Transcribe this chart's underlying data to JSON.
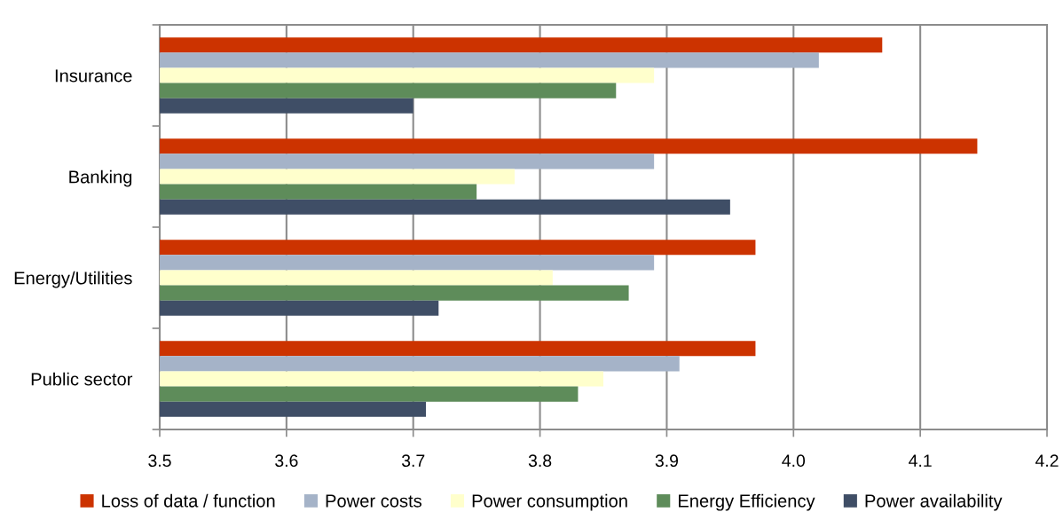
{
  "chart_data": {
    "type": "bar",
    "orientation": "horizontal",
    "categories": [
      "Insurance",
      "Banking",
      "Energy/Utilities",
      "Public sector"
    ],
    "series": [
      {
        "name": "Loss of data / function",
        "color": "#cc3300",
        "values": [
          4.07,
          4.145,
          3.97,
          3.97
        ]
      },
      {
        "name": "Power costs",
        "color": "#a5b3c8",
        "values": [
          4.02,
          3.89,
          3.89,
          3.91
        ]
      },
      {
        "name": "Power consumption",
        "color": "#ffffcc",
        "values": [
          3.89,
          3.78,
          3.81,
          3.85
        ]
      },
      {
        "name": "Energy Efficiency",
        "color": "#5e8c5a",
        "values": [
          3.86,
          3.75,
          3.87,
          3.83
        ]
      },
      {
        "name": "Power availability",
        "color": "#3f4e66",
        "values": [
          3.7,
          3.95,
          3.72,
          3.71
        ]
      }
    ],
    "xlim": [
      3.5,
      4.2
    ],
    "xticks": [
      3.5,
      3.6,
      3.7,
      3.8,
      3.9,
      {
        "value": 4,
        "label": "4.0"
      },
      4.1,
      4.2
    ],
    "grid": "x",
    "legend": "bottom"
  }
}
